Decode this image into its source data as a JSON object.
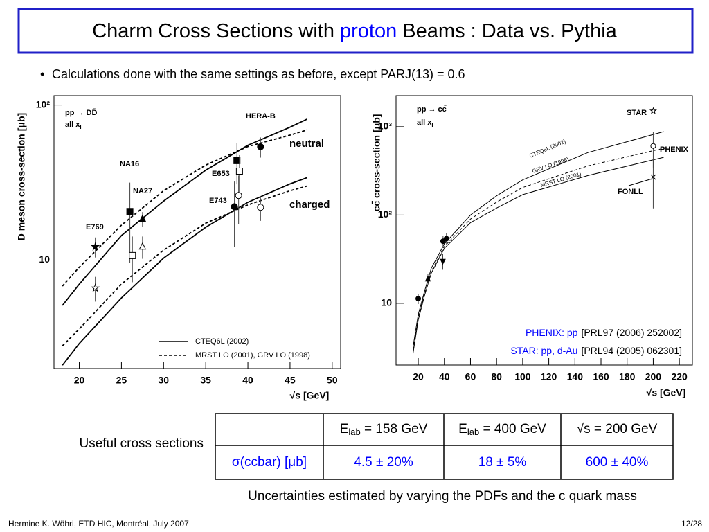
{
  "slide": {
    "title": {
      "before": "Charm Cross Sections with ",
      "highlight": "proton",
      "after": " Beams : Data vs. Pythia"
    },
    "bullet": "Calculations done with the same settings as before, except PARJ(13) = 0.6",
    "table_label": "Useful cross sections",
    "table": {
      "header": [
        {
          "main": "E",
          "sub": "lab",
          "rest": " = 158 GeV"
        },
        {
          "main": "E",
          "sub": "lab",
          "rest": " = 400 GeV"
        },
        "√s = 200 GeV"
      ],
      "row_label": "σ(ccbar) [μb]",
      "row": [
        "4.5 ± 20%",
        "18 ± 5%",
        "600 ± 40%"
      ]
    },
    "caption": "Uncertainties estimated by varying the PDFs and the c quark mass",
    "footer": "Hermine K. Wöhri, ETD HIC, Montréal, July 2007",
    "page": "12/28"
  },
  "chart_data": [
    {
      "type": "scatter",
      "ylog": true,
      "y_label": "D meson cross-section [μb]",
      "x_label": "√s [GeV]",
      "xlim": [
        17,
        51
      ],
      "ylim": [
        2,
        115
      ],
      "xticks": [
        20,
        25,
        30,
        35,
        40,
        45,
        50
      ],
      "yticks": [
        10,
        {
          "value": 100,
          "label": "10²"
        }
      ],
      "process": "pp → DD̄",
      "note": {
        "text": "all x",
        "sub": "F"
      },
      "annotations": [
        "HERA-B",
        "NA16",
        "NA27",
        "E653",
        "E743",
        "E769",
        "neutral",
        "charged"
      ],
      "curves": {
        "x": [
          18,
          20,
          25,
          30,
          35,
          40,
          45,
          47
        ],
        "series": [
          {
            "name": "CTEQ6L (2002)",
            "dashed": false,
            "color": "#000",
            "values": [
              5.1,
              7,
              14.4,
              24,
              38,
              55,
              72,
              81
            ]
          },
          {
            "name": "MRST LO (2001), GRV LO (1998)",
            "dashed": true,
            "color": "#000",
            "values": [
              6.8,
              9,
              16.8,
              28,
              41,
              54,
              64,
              69
            ]
          },
          {
            "dashed": false,
            "color": "#000",
            "values": [
              2.1,
              2.9,
              5.7,
              10.3,
              16.3,
              23.6,
              31,
              34
            ]
          },
          {
            "dashed": true,
            "color": "#000",
            "values": [
              2.8,
              3.6,
              7,
              11.6,
              17.3,
              22.7,
              28,
              30
            ]
          }
        ]
      },
      "points": {
        "x": [
          21.9,
          21.9,
          26,
          26.3,
          27.5,
          27.5,
          38.7,
          39,
          38.4,
          38.9,
          41.5,
          41.5
        ],
        "values": [
          12.2,
          6.6,
          20.6,
          10.7,
          18.4,
          12.2,
          43.8,
          37.5,
          22.1,
          26.1,
          53.8,
          21.9
        ],
        "errors": [
          1.8,
          1.2,
          11,
          3.5,
          2,
          2,
          13,
          10,
          10,
          9,
          8,
          4
        ],
        "markers": [
          "star",
          "star",
          "square",
          "square",
          "triangle",
          "triangle",
          "square",
          "square",
          "circle",
          "circle",
          "circle",
          "circle"
        ],
        "filled": [
          true,
          false,
          true,
          false,
          true,
          false,
          true,
          false,
          true,
          false,
          true,
          false
        ]
      }
    },
    {
      "type": "scatter",
      "ylog": true,
      "y_label": "cc̄ cross-section [μb]",
      "x_label": "√s [GeV]",
      "xlim": [
        3,
        230
      ],
      "ylim": [
        2,
        2250
      ],
      "xticks": [
        20,
        40,
        60,
        80,
        100,
        120,
        140,
        160,
        180,
        200,
        220
      ],
      "yticks": [
        10,
        {
          "value": 100,
          "label": "10²"
        },
        {
          "value": 1000,
          "label": "10³"
        }
      ],
      "process": "pp → cc̄",
      "note": {
        "text": "all x",
        "sub": "F"
      },
      "annotations": [
        "STAR",
        "PHENIX",
        "FONLL"
      ],
      "curves": {
        "x": [
          16,
          20,
          25,
          30,
          40,
          60,
          80,
          100,
          150,
          208
        ],
        "series": [
          {
            "name": "CTEQ6L (2002)",
            "dashed": false,
            "color": "#000",
            "values": [
              3.2,
              7.5,
              14,
              25,
              47,
              100,
              165,
              250,
              510,
              880
            ]
          },
          {
            "name": "GRV LO (1998)",
            "dashed": true,
            "color": "#000",
            "values": [
              3,
              7,
              13,
              23,
              44,
              90,
              140,
              205,
              360,
              570
            ]
          },
          {
            "name": "MRST LO (2001)",
            "dashed": false,
            "color": "#000",
            "values": [
              2.7,
              6.5,
              12.5,
              22,
              42,
              82,
              120,
              170,
              280,
              450
            ]
          }
        ]
      },
      "points": {
        "x": [
          20,
          27.4,
          39,
          41.6,
          38.8,
          200,
          200,
          200
        ],
        "values": [
          11.3,
          18.8,
          50.5,
          54,
          30,
          605,
          1510,
          269
        ],
        "errors": [
          1.5,
          2.5,
          8,
          8,
          6,
          260,
          0,
          150
        ],
        "markers": [
          "circle",
          "triangle",
          "circle",
          "circle",
          "itriangle",
          "circle",
          "star",
          "cross"
        ],
        "filled": [
          true,
          true,
          true,
          true,
          true,
          false,
          false,
          false
        ]
      },
      "references": [
        {
          "source": "PHENIX: pp",
          "citation": "[PRL97 (2006) 252002]"
        },
        {
          "source": "STAR: pp, d-Au",
          "citation": "[PRL94 (2005) 062301]"
        }
      ]
    }
  ]
}
